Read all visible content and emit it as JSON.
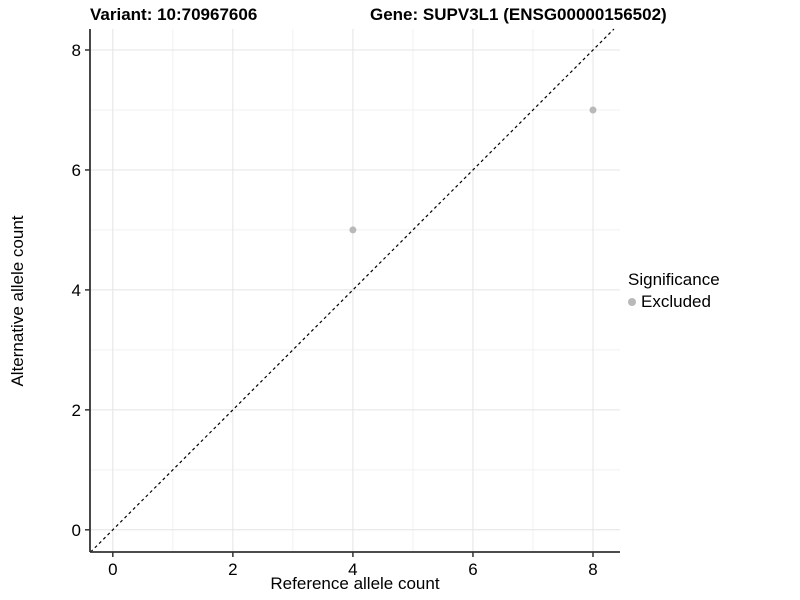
{
  "chart_data": {
    "type": "scatter",
    "title_left": "Variant: 10:70967606",
    "title_right": "Gene: SUPV3L1 (ENSG00000156502)",
    "xlabel": "Reference allele count",
    "ylabel": "Alternative allele count",
    "xlim": [
      -0.38,
      8.45
    ],
    "ylim": [
      -0.37,
      8.35
    ],
    "xticks": [
      0,
      2,
      4,
      6,
      8
    ],
    "yticks": [
      0,
      2,
      4,
      6,
      8
    ],
    "minor_xticks": [
      1,
      3,
      5,
      7
    ],
    "minor_yticks": [
      1,
      3,
      5,
      7
    ],
    "grid": "major and minor gridlines on white panel",
    "identity_line": {
      "equation": "y = x",
      "style": "dashed",
      "color": "#000000"
    },
    "series": [
      {
        "name": "Excluded",
        "color": "#b9b9b9",
        "marker": "circle",
        "points": [
          {
            "x": 4,
            "y": 5
          },
          {
            "x": 8,
            "y": 7
          }
        ]
      }
    ],
    "legend": {
      "title": "Significance",
      "position": "right",
      "items": [
        {
          "label": "Excluded",
          "color": "#b9b9b9",
          "marker": "circle"
        }
      ]
    }
  },
  "colors": {
    "background": "#ffffff",
    "grid_major": "#e4e4e4",
    "grid_minor": "#f1f1f1",
    "axis_line": "#333333",
    "tick_mark": "#333333",
    "tick_label": "#000000",
    "point": "#b9b9b9"
  }
}
